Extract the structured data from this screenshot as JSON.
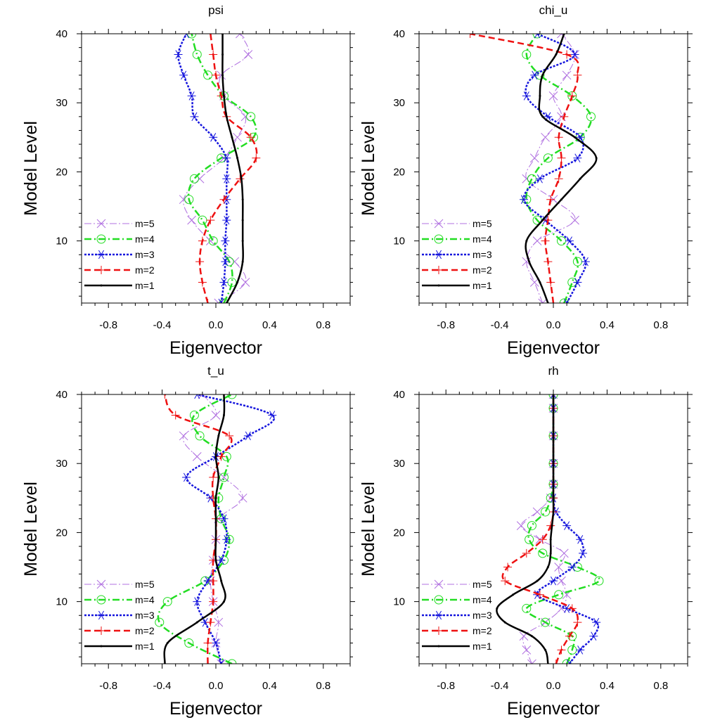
{
  "chart_data": [
    {
      "type": "line",
      "title": "psi",
      "xlabel": "Eigenvector",
      "ylabel": "Model Level",
      "xlim": [
        -1,
        1
      ],
      "ylim": [
        1,
        40
      ],
      "xticks": [
        -0.8,
        -0.4,
        0.0,
        0.4,
        0.8
      ],
      "xtick_labels": [
        "-0.8",
        "-0.4",
        "0.0",
        "0.4",
        "0.8"
      ],
      "yticks": [
        10,
        20,
        30,
        40
      ],
      "ytick_labels": [
        "10",
        "20",
        "30",
        "40"
      ],
      "grid": false,
      "legend_position": "bottom-left",
      "series": [
        {
          "name": "m=5",
          "key": "m5",
          "levels": [
            1,
            4,
            7,
            10,
            13,
            16,
            19,
            22,
            25,
            28,
            31,
            34,
            37,
            40
          ],
          "values": [
            0.02,
            0.22,
            0.14,
            -0.04,
            -0.18,
            -0.24,
            -0.12,
            0.06,
            0.16,
            0.22,
            0.06,
            0.04,
            0.24,
            0.18
          ]
        },
        {
          "name": "m=4",
          "key": "m4",
          "levels": [
            1,
            4,
            7,
            10,
            13,
            16,
            19,
            22,
            25,
            28,
            31,
            34,
            37,
            40
          ],
          "values": [
            0.06,
            0.12,
            0.1,
            -0.02,
            -0.1,
            -0.2,
            -0.16,
            0.04,
            0.28,
            0.26,
            0.06,
            -0.06,
            -0.14,
            -0.18
          ]
        },
        {
          "name": "m=3",
          "key": "m3",
          "levels": [
            1,
            4,
            7,
            10,
            13,
            16,
            19,
            22,
            25,
            28,
            31,
            34,
            37,
            40
          ],
          "values": [
            0.04,
            0.06,
            0.07,
            0.07,
            0.08,
            0.08,
            0.08,
            0.08,
            -0.02,
            -0.16,
            -0.18,
            -0.24,
            -0.28,
            -0.22
          ]
        },
        {
          "name": "m=2",
          "key": "m2",
          "levels": [
            1,
            4,
            7,
            10,
            13,
            16,
            19,
            22,
            25,
            28,
            31,
            34,
            37,
            40
          ],
          "values": [
            -0.06,
            -0.1,
            -0.12,
            -0.1,
            -0.04,
            0.06,
            0.18,
            0.3,
            0.26,
            0.08,
            0.04,
            0.0,
            -0.02,
            -0.04
          ]
        },
        {
          "name": "m=1",
          "key": "m1",
          "levels": [
            1,
            4,
            7,
            10,
            13,
            16,
            19,
            22,
            25,
            28,
            31,
            34,
            37,
            40
          ],
          "values": [
            0.08,
            0.16,
            0.2,
            0.2,
            0.2,
            0.2,
            0.19,
            0.16,
            0.12,
            0.08,
            0.06,
            0.05,
            0.05,
            0.05
          ]
        }
      ]
    },
    {
      "type": "line",
      "title": "chi_u",
      "xlabel": "Eigenvector",
      "ylabel": "Model Level",
      "xlim": [
        -1,
        1
      ],
      "ylim": [
        1,
        40
      ],
      "xticks": [
        -0.8,
        -0.4,
        0.0,
        0.4,
        0.8
      ],
      "xtick_labels": [
        "-0.8",
        "-0.4",
        "0.0",
        "0.4",
        "0.8"
      ],
      "yticks": [
        10,
        20,
        30,
        40
      ],
      "ytick_labels": [
        "10",
        "20",
        "30",
        "40"
      ],
      "grid": false,
      "legend_position": "bottom-left",
      "series": [
        {
          "name": "m=5",
          "key": "m5",
          "levels": [
            1,
            4,
            7,
            10,
            13,
            16,
            19,
            22,
            25,
            28,
            31,
            34,
            37,
            40
          ],
          "values": [
            -0.08,
            -0.14,
            -0.2,
            -0.12,
            0.16,
            0.0,
            -0.2,
            -0.14,
            -0.06,
            0.06,
            0.0,
            0.1,
            0.16,
            0.06
          ]
        },
        {
          "name": "m=4",
          "key": "m4",
          "levels": [
            1,
            4,
            7,
            10,
            13,
            16,
            19,
            22,
            25,
            28,
            31,
            34,
            37,
            40
          ],
          "values": [
            0.08,
            0.14,
            0.18,
            0.06,
            -0.12,
            -0.2,
            -0.16,
            -0.04,
            0.2,
            0.28,
            0.14,
            -0.1,
            -0.2,
            -0.12
          ]
        },
        {
          "name": "m=3",
          "key": "m3",
          "levels": [
            1,
            4,
            7,
            10,
            13,
            16,
            19,
            22,
            25,
            28,
            31,
            34,
            37,
            40
          ],
          "values": [
            0.1,
            0.18,
            0.24,
            0.12,
            -0.06,
            -0.22,
            -0.1,
            0.18,
            0.2,
            -0.04,
            -0.2,
            -0.14,
            0.16,
            -0.12
          ]
        },
        {
          "name": "m=2",
          "key": "m2",
          "levels": [
            1,
            4,
            7,
            10,
            13,
            16,
            19,
            22,
            25,
            28,
            31,
            34,
            37,
            40
          ],
          "values": [
            0.0,
            -0.02,
            -0.04,
            -0.06,
            -0.04,
            -0.02,
            0.04,
            0.06,
            0.04,
            0.08,
            0.14,
            0.18,
            0.1,
            -0.62
          ]
        },
        {
          "name": "m=1",
          "key": "m1",
          "levels": [
            1,
            4,
            7,
            10,
            13,
            16,
            19,
            22,
            25,
            28,
            31,
            34,
            37,
            40
          ],
          "values": [
            -0.04,
            -0.1,
            -0.18,
            -0.2,
            -0.08,
            0.06,
            0.2,
            0.32,
            0.16,
            -0.08,
            -0.1,
            -0.08,
            0.02,
            0.08
          ]
        }
      ]
    },
    {
      "type": "line",
      "title": "t_u",
      "xlabel": "Eigenvector",
      "ylabel": "Model Level",
      "xlim": [
        -1,
        1
      ],
      "ylim": [
        1,
        40
      ],
      "xticks": [
        -0.8,
        -0.4,
        0.0,
        0.4,
        0.8
      ],
      "xtick_labels": [
        "-0.8",
        "-0.4",
        "0.0",
        "0.4",
        "0.8"
      ],
      "yticks": [
        10,
        20,
        30,
        40
      ],
      "ytick_labels": [
        "10",
        "20",
        "30",
        "40"
      ],
      "grid": false,
      "legend_position": "bottom-left",
      "series": [
        {
          "name": "m=5",
          "key": "m5",
          "levels": [
            1,
            4,
            7,
            10,
            13,
            16,
            19,
            22,
            25,
            28,
            31,
            34,
            37,
            40
          ],
          "values": [
            0.04,
            0.0,
            0.02,
            -0.02,
            -0.04,
            -0.02,
            0.0,
            0.02,
            0.2,
            0.06,
            -0.14,
            -0.24,
            0.0,
            -0.1
          ]
        },
        {
          "name": "m=4",
          "key": "m4",
          "levels": [
            1,
            4,
            7,
            10,
            13,
            16,
            19,
            22,
            25,
            28,
            31,
            34,
            37,
            40
          ],
          "values": [
            0.12,
            -0.2,
            -0.42,
            -0.36,
            -0.08,
            0.06,
            0.1,
            0.04,
            0.02,
            0.06,
            0.08,
            -0.12,
            -0.16,
            0.12
          ]
        },
        {
          "name": "m=3",
          "key": "m3",
          "levels": [
            1,
            4,
            7,
            10,
            13,
            16,
            19,
            22,
            25,
            28,
            31,
            34,
            37,
            40
          ],
          "values": [
            0.04,
            0.0,
            -0.08,
            -0.14,
            -0.06,
            0.04,
            0.08,
            0.06,
            -0.04,
            -0.22,
            0.0,
            0.24,
            0.42,
            -0.14
          ]
        },
        {
          "name": "m=2",
          "key": "m2",
          "levels": [
            1,
            4,
            7,
            10,
            13,
            16,
            19,
            22,
            25,
            28,
            31,
            34,
            37,
            40
          ],
          "values": [
            -0.06,
            -0.06,
            -0.04,
            -0.02,
            -0.02,
            -0.02,
            0.0,
            0.0,
            -0.02,
            -0.02,
            0.04,
            0.1,
            -0.3,
            -0.38
          ]
        },
        {
          "name": "m=1",
          "key": "m1",
          "levels": [
            1,
            4,
            7,
            10,
            13,
            16,
            19,
            22,
            25,
            28,
            31,
            34,
            37,
            40
          ],
          "values": [
            -0.38,
            -0.36,
            -0.14,
            0.06,
            0.04,
            0.0,
            0.0,
            0.0,
            0.0,
            0.02,
            0.0,
            0.02,
            0.06,
            0.06
          ]
        }
      ]
    },
    {
      "type": "line",
      "title": "rh",
      "xlabel": "Eigenvector",
      "ylabel": "Model Level",
      "xlim": [
        -1,
        1
      ],
      "ylim": [
        1,
        40
      ],
      "xticks": [
        -0.8,
        -0.4,
        0.0,
        0.4,
        0.8
      ],
      "xtick_labels": [
        "-0.8",
        "-0.4",
        "0.0",
        "0.4",
        "0.8"
      ],
      "yticks": [
        10,
        20,
        30,
        40
      ],
      "ytick_labels": [
        "10",
        "20",
        "30",
        "40"
      ],
      "grid": false,
      "legend_position": "bottom-left",
      "series": [
        {
          "name": "m=5",
          "key": "m5",
          "levels": [
            1,
            3,
            5,
            7,
            9,
            11,
            13,
            15,
            17,
            19,
            21,
            23,
            25,
            27,
            30,
            34,
            38,
            40
          ],
          "values": [
            -0.16,
            -0.2,
            -0.22,
            -0.06,
            0.06,
            0.1,
            0.06,
            0.04,
            0.08,
            -0.1,
            -0.24,
            -0.12,
            -0.02,
            0.0,
            0.0,
            0.0,
            0.0,
            0.0
          ]
        },
        {
          "name": "m=4",
          "key": "m4",
          "levels": [
            1,
            3,
            5,
            7,
            9,
            11,
            13,
            15,
            17,
            19,
            21,
            23,
            25,
            27,
            30,
            34,
            38,
            40
          ],
          "values": [
            0.1,
            0.14,
            0.14,
            -0.06,
            -0.2,
            0.04,
            0.34,
            0.18,
            -0.08,
            -0.18,
            -0.16,
            -0.06,
            -0.02,
            0.0,
            0.0,
            0.0,
            0.0,
            0.0
          ]
        },
        {
          "name": "m=3",
          "key": "m3",
          "levels": [
            1,
            3,
            5,
            7,
            9,
            11,
            13,
            15,
            17,
            19,
            21,
            23,
            25,
            27,
            30,
            34,
            38,
            40
          ],
          "values": [
            0.12,
            0.2,
            0.3,
            0.32,
            0.1,
            -0.12,
            0.0,
            0.14,
            0.22,
            0.2,
            0.1,
            0.02,
            0.0,
            0.0,
            0.0,
            0.0,
            0.0,
            0.0
          ]
        },
        {
          "name": "m=2",
          "key": "m2",
          "levels": [
            1,
            3,
            5,
            7,
            9,
            11,
            13,
            15,
            17,
            19,
            21,
            23,
            25,
            27,
            30,
            34,
            38,
            40
          ],
          "values": [
            0.02,
            0.06,
            0.12,
            0.18,
            0.14,
            -0.1,
            -0.36,
            -0.34,
            -0.2,
            -0.08,
            -0.02,
            0.0,
            0.0,
            0.0,
            0.0,
            0.0,
            0.0,
            0.0
          ]
        },
        {
          "name": "m=1",
          "key": "m1",
          "levels": [
            1,
            3,
            5,
            7,
            9,
            11,
            13,
            15,
            17,
            19,
            21,
            23,
            25,
            27,
            30,
            34,
            38,
            40
          ],
          "values": [
            -0.04,
            -0.06,
            -0.16,
            -0.36,
            -0.42,
            -0.3,
            -0.12,
            -0.04,
            -0.02,
            -0.02,
            -0.01,
            0.0,
            0.0,
            0.0,
            0.0,
            0.0,
            0.0,
            0.0
          ]
        }
      ]
    }
  ],
  "series_styles": {
    "m5": {
      "color": "#B070E0",
      "dash": "10,3,2,3",
      "marker": "x",
      "width": 1
    },
    "m4": {
      "color": "#22DD22",
      "dash": "10,4,2,4",
      "marker": "circle",
      "width": 2.5
    },
    "m3": {
      "color": "#1515DD",
      "dash": "3,2",
      "marker": "asterisk",
      "width": 2.5
    },
    "m2": {
      "color": "#EE1111",
      "dash": "9,5",
      "marker": "plus",
      "width": 2.5
    },
    "m1": {
      "color": "#000000",
      "dash": "",
      "marker": "dot",
      "width": 2.5
    }
  },
  "legend_order": [
    "m5",
    "m4",
    "m3",
    "m2",
    "m1"
  ]
}
